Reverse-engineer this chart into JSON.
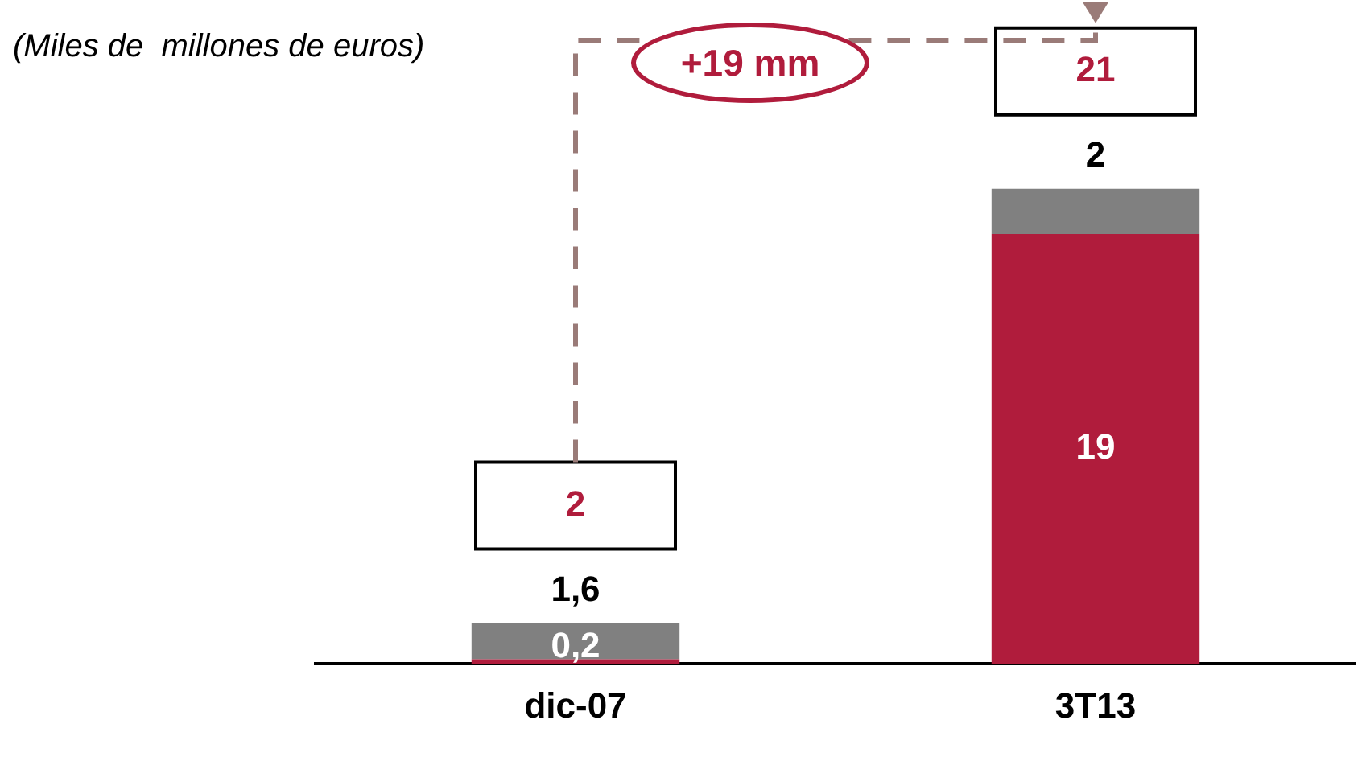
{
  "chart_data": {
    "type": "bar",
    "subtitle": "(Miles de  millones de euros)",
    "stacked": true,
    "categories": [
      "dic-07",
      "3T13"
    ],
    "series": [
      {
        "color": "#b01c3c",
        "values": [
          0.2,
          19
        ],
        "value_labels": [
          "0,2",
          "19"
        ]
      },
      {
        "color": "#808080",
        "values": [
          1.6,
          2
        ],
        "value_labels": [
          "1,6",
          "2"
        ]
      }
    ],
    "totals": [
      "2",
      "21"
    ],
    "annotations": [
      "+19 mm"
    ],
    "legend": false,
    "grid": false
  }
}
